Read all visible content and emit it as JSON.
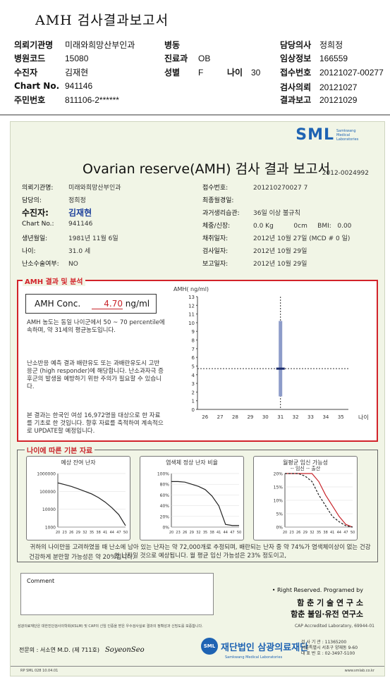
{
  "header": {
    "title": "AMH 검사결과보고서",
    "fields": [
      {
        "label": "의뢰기관명",
        "value": "미래와희망산부인과"
      },
      {
        "label": "병동",
        "value": ""
      },
      {
        "label": "담당의사",
        "value": "정희정"
      },
      {
        "label": "병원코드",
        "value": "15080"
      },
      {
        "label": "진료과",
        "value": "OB"
      },
      {
        "label": "임상정보",
        "value": "166559"
      },
      {
        "label": "수진자",
        "value": "김재현"
      },
      {
        "label": "성별",
        "value": "F"
      },
      {
        "label": "나이",
        "value": "30"
      },
      {
        "label": "접수번호",
        "value": "20121027-00277"
      },
      {
        "label": "Chart No.",
        "value": "941146"
      },
      {
        "label": "검사의뢰",
        "value": "20121027"
      },
      {
        "label": "주민번호",
        "value": "811106-2******"
      },
      {
        "label": "결과보고",
        "value": "20121029"
      }
    ]
  },
  "report": {
    "logo": "SML",
    "logo_sub": "Samkwang Medical Laboratories",
    "title": "Ovarian reserve(AMH) 검사 결과 보고서",
    "report_no": "2012-0024992",
    "left_info": [
      {
        "label": "의뢰기관명:",
        "value": "미래와희망산부인과"
      },
      {
        "label": "담당의:",
        "value": "정희정"
      },
      {
        "label": "수진자:",
        "value": "김재현"
      },
      {
        "label": "Chart No.:",
        "value": "941146"
      },
      {
        "label": "생년월일:",
        "value": "1981년 11월 6일"
      },
      {
        "label": "나이:",
        "value": "31.0 세"
      },
      {
        "label": "난소수술여부:",
        "value": "NO"
      }
    ],
    "right_info": [
      {
        "label": "접수번호:",
        "value": "201210270027 7"
      },
      {
        "label": "최종월경일:",
        "value": ""
      },
      {
        "label": "과거생리습관:",
        "value": "36일 이상 불규칙"
      },
      {
        "label": "체중/신장:",
        "value": "0.0 Kg          0cm     BMI:   0.00"
      },
      {
        "label": "채취일자:",
        "value": "2012년 10월 27일 (MCD #  0 일)"
      },
      {
        "label": "검사일자:",
        "value": "2012년 10월 29일"
      },
      {
        "label": "보고일자:",
        "value": "2012년 10월 29일"
      }
    ],
    "amh": {
      "section_title": "AMH 결과 및 분석",
      "conc_label": "AMH Conc.",
      "conc_value": "4.70",
      "conc_unit": "ng/ml",
      "para1": "AMH 농도는 동일 나이군에서 50 ~ 70 percentile에 속하며, 약 31세의 평균농도입니다.",
      "para2": "난소반응 예측 결과 배란유도 또는 과배란유도시 고반응군 (high responder)에 해당합니다. 난소과자극 증후군의 발생을 예방하기 위한 주의가 필요할 수 있습니다.",
      "para3": "본 결과는 한국인 여성 16,972명을 대상으로 한 자료를 기초로 한 것입니다. 향후 자료를 축적하여 계속적으로 UPDATE할 예정입니다."
    },
    "age_section_title": "나이에 따른 기본 자료",
    "mini_titles": [
      "예상 잔여 난자",
      "염색체 정상 난자 비율",
      "월평균 임신 가능성"
    ],
    "mini_legend": "-- 임신 -- 출산",
    "summary1": "귀하의 나이만을 고려하였을 때 난소에 남아 있는 난자는 약 72,000개로 추정되며, 배란되는 난자 중 약 74%가 염색체이상이 없는 건강한 난자일 것으로 예상됩니다. 월 평균 임신 가능성은 23% 정도이고,",
    "summary2": "건강하게 분만할 가능성은 약 20%입니다.",
    "comment_label": "Comment",
    "credit1": "• Right Reserved. Programed by",
    "credit2": "함 춘 기 술 연 구 소",
    "credit3": "함춘 불임·유전 연구소",
    "footnote": "삼광의료재단은 대한진단검사의학회(KSLM) 및 CAP의 신임 인증을 받은 우수검사실로 결과의 정확성과 신빙도를 보증합니다.",
    "cap": "CAP  Accredited  Laboratory,  69944-01",
    "doctor": "전문의 : 서소연 M.D. (제 711호)",
    "signature": "SoyeonSeo",
    "foundation_badge": "SML",
    "foundation": "재단법인 삼광의료재단",
    "foundation_en": "Samkwang Medical Laboratories",
    "contact": [
      "검 사 기 관 : 11365200",
      "서울특별시 서초구 양재동 9-60",
      "대 표 번 호 : 02-3497-5100"
    ],
    "form_no": "RP SML 028 10.04.01",
    "website": "www.smlab.co.kr"
  },
  "chart_data": [
    {
      "type": "scatter",
      "title": "",
      "ylabel": "AMH( ng/ml)",
      "xlabel": "나이",
      "x_ticks": [
        26,
        27,
        28,
        29,
        30,
        31,
        32,
        33,
        34,
        35
      ],
      "ylim": [
        0,
        13
      ],
      "y_ticks": [
        0,
        1,
        2,
        3,
        4,
        5,
        6,
        7,
        8,
        9,
        10,
        11,
        12,
        13
      ],
      "range_bar": {
        "x": 31,
        "low": 1.5,
        "high": 10.2
      },
      "marker": {
        "x": 31,
        "y": 4.7
      },
      "reference_line_y": 4.7
    },
    {
      "type": "line",
      "title": "예상 잔여 난자",
      "x": [
        20,
        23,
        26,
        29,
        32,
        35,
        38,
        41,
        44,
        47,
        50
      ],
      "x_ticks": [
        "20",
        "23",
        "26",
        "29",
        "32",
        "35",
        "38",
        "41",
        "44",
        "47",
        "50"
      ],
      "y_scale": "log",
      "y_ticks": [
        "1000000",
        "100000",
        "10000",
        "1000"
      ],
      "values": [
        300000,
        240000,
        190000,
        140000,
        100000,
        72000,
        45000,
        25000,
        12000,
        5000,
        1200
      ]
    },
    {
      "type": "line",
      "title": "염색체 정상 난자 비율",
      "x": [
        20,
        23,
        26,
        29,
        32,
        35,
        38,
        41,
        44,
        47,
        50
      ],
      "x_ticks": [
        "20",
        "23",
        "26",
        "29",
        "32",
        "35",
        "38",
        "41",
        "44",
        "47",
        "50"
      ],
      "y_ticks": [
        "100%",
        "80%",
        "60%",
        "40%",
        "20%",
        "0%"
      ],
      "values": [
        85,
        85,
        84,
        80,
        76,
        70,
        58,
        40,
        5,
        3,
        3
      ]
    },
    {
      "type": "line",
      "title": "월평균 임신 가능성",
      "x": [
        20,
        23,
        26,
        29,
        32,
        35,
        38,
        41,
        44,
        47,
        50
      ],
      "x_ticks": [
        "20",
        "23",
        "26",
        "29",
        "32",
        "35",
        "38",
        "41",
        "44",
        "47",
        "50"
      ],
      "y_ticks": [
        "20%",
        "15%",
        "10%",
        "5%",
        "0%"
      ],
      "series": [
        {
          "name": "임신",
          "values": [
            20,
            20,
            20,
            20,
            20,
            17,
            12,
            8,
            4,
            1,
            0
          ]
        },
        {
          "name": "출산",
          "values": [
            20,
            20,
            20,
            19,
            17,
            12,
            8,
            4,
            2,
            0.5,
            0
          ]
        }
      ]
    }
  ]
}
